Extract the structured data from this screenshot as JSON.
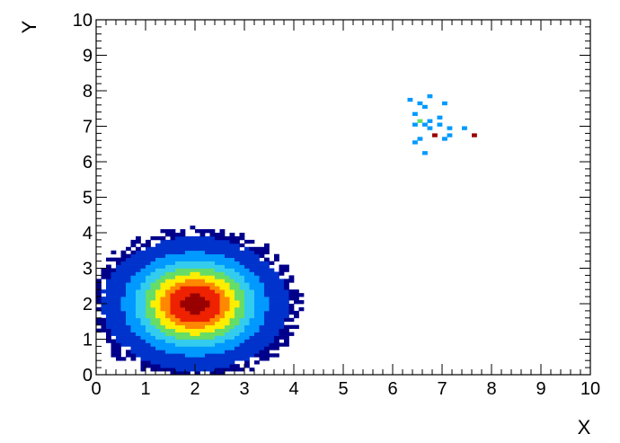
{
  "chart_data": {
    "type": "heatmap",
    "title": "",
    "xlabel": "X",
    "ylabel": "Y",
    "xlim": [
      0,
      10
    ],
    "ylim": [
      0,
      10
    ],
    "bins": [
      100,
      100
    ],
    "grid": false,
    "legend": "none",
    "x_ticks": [
      "0",
      "1",
      "2",
      "3",
      "4",
      "5",
      "6",
      "7",
      "8",
      "9",
      "10"
    ],
    "y_ticks": [
      "0",
      "1",
      "2",
      "3",
      "4",
      "5",
      "6",
      "7",
      "8",
      "9",
      "10"
    ],
    "color_scale": [
      "#00008b",
      "#0033cc",
      "#0099ff",
      "#33ccee",
      "#66dd66",
      "#ffee00",
      "#ff8800",
      "#ee2200",
      "#990000"
    ],
    "clusters": [
      {
        "name": "",
        "center": [
          2.0,
          2.0
        ],
        "sigma": 0.8,
        "radius": 2.2,
        "peak_level": 1.0
      },
      {
        "name": "",
        "center": [
          7.0,
          7.0
        ],
        "sigma": 0.4,
        "radius": 1.5,
        "peak_level": 0.28
      }
    ],
    "hot_cells": [
      {
        "x": 6.85,
        "y": 6.75,
        "level": 1.0
      },
      {
        "x": 7.65,
        "y": 6.75,
        "level": 1.0
      },
      {
        "x": 6.55,
        "y": 7.15,
        "level": 0.55
      }
    ]
  }
}
